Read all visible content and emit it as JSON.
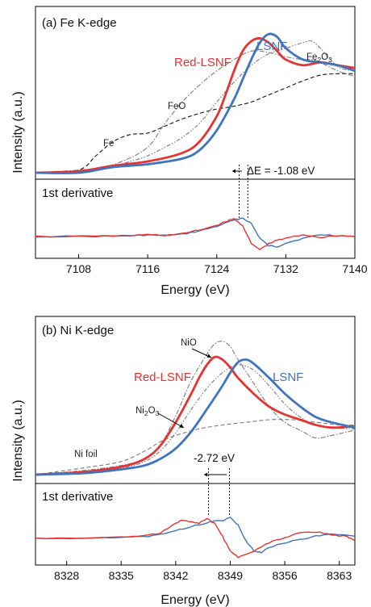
{
  "colors": {
    "red": "#e8322f",
    "blue": "#3f74c0",
    "black": "#111111",
    "gray": "#7a7a7a"
  },
  "chart_data": [
    {
      "type": "line",
      "title": "(a) Fe K-edge",
      "xlabel": "Energy (eV)",
      "ylabel": "Intensity (a.u.)",
      "lower_label": "1st derivative",
      "xlim": [
        7103,
        7140
      ],
      "xticks": [
        7108,
        7116,
        7124,
        7132,
        7140
      ],
      "series_labels": [
        {
          "name": "Red-LSNF",
          "color": "red"
        },
        {
          "name": "LSNF",
          "color": "blue"
        }
      ],
      "reference_labels": [
        "Fe",
        "FeO",
        "Fe2O3"
      ],
      "shift_label": "ΔE = -1.08 eV",
      "series": [
        {
          "name": "Red-LSNF",
          "color": "red",
          "x": [
            7103,
            7108,
            7112,
            7116,
            7120,
            7122,
            7124,
            7125,
            7126,
            7127,
            7128,
            7129,
            7130,
            7131,
            7132,
            7134,
            7136,
            7138,
            7140
          ],
          "y": [
            0.0,
            0.01,
            0.05,
            0.08,
            0.14,
            0.22,
            0.4,
            0.55,
            0.72,
            0.86,
            0.93,
            0.95,
            0.92,
            0.86,
            0.8,
            0.76,
            0.78,
            0.76,
            0.74
          ]
        },
        {
          "name": "LSNF",
          "color": "blue",
          "x": [
            7103,
            7108,
            7112,
            7116,
            7120,
            7122,
            7124,
            7126,
            7127,
            7128,
            7129,
            7130,
            7131,
            7132,
            7134,
            7136,
            7138,
            7140
          ],
          "y": [
            0.0,
            0.0,
            0.04,
            0.06,
            0.1,
            0.16,
            0.3,
            0.52,
            0.66,
            0.8,
            0.92,
            0.98,
            0.96,
            0.88,
            0.8,
            0.78,
            0.76,
            0.72
          ]
        },
        {
          "name": "Fe",
          "color": "black",
          "dash": "dashed",
          "x": [
            7103,
            7108,
            7110,
            7112,
            7114,
            7116,
            7118,
            7120,
            7122,
            7124,
            7126,
            7128,
            7130,
            7132,
            7134,
            7136,
            7138,
            7140
          ],
          "y": [
            0.0,
            0.02,
            0.12,
            0.22,
            0.27,
            0.28,
            0.33,
            0.38,
            0.42,
            0.45,
            0.47,
            0.5,
            0.55,
            0.6,
            0.65,
            0.69,
            0.7,
            0.7
          ]
        },
        {
          "name": "FeO",
          "color": "gray",
          "dash": "dashdot",
          "x": [
            7103,
            7110,
            7113,
            7116,
            7118,
            7120,
            7122,
            7124,
            7126,
            7128,
            7130,
            7132,
            7134,
            7135,
            7136,
            7138,
            7140
          ],
          "y": [
            0.0,
            0.03,
            0.08,
            0.18,
            0.35,
            0.5,
            0.62,
            0.72,
            0.8,
            0.86,
            0.85,
            0.82,
            0.8,
            0.8,
            0.78,
            0.72,
            0.68
          ]
        },
        {
          "name": "Fe2O3",
          "color": "gray",
          "dash": "dashdotdot",
          "x": [
            7103,
            7110,
            7114,
            7116,
            7118,
            7120,
            7122,
            7124,
            7126,
            7128,
            7130,
            7132,
            7134,
            7135,
            7136,
            7138,
            7140
          ],
          "y": [
            0.0,
            0.02,
            0.08,
            0.12,
            0.18,
            0.25,
            0.35,
            0.5,
            0.64,
            0.76,
            0.84,
            0.88,
            0.92,
            0.93,
            0.88,
            0.75,
            0.72
          ]
        }
      ],
      "derivative_series": [
        {
          "name": "Red-LSNF",
          "color": "red",
          "x": [
            7103,
            7110,
            7114,
            7116,
            7118,
            7120,
            7122,
            7124,
            7125,
            7126,
            7127,
            7128,
            7129,
            7130,
            7131,
            7132,
            7134,
            7136,
            7138,
            7140
          ],
          "y": [
            0.0,
            0.01,
            0.05,
            0.1,
            0.06,
            0.15,
            0.35,
            0.6,
            0.8,
            0.95,
            0.6,
            -0.4,
            -0.7,
            -0.4,
            -0.2,
            -0.1,
            0.1,
            -0.05,
            0.05,
            0.0
          ]
        },
        {
          "name": "LSNF",
          "color": "blue",
          "x": [
            7103,
            7110,
            7114,
            7116,
            7118,
            7120,
            7122,
            7124,
            7126,
            7127,
            7128,
            7129,
            7130,
            7131,
            7132,
            7134,
            7136,
            7138,
            7140
          ],
          "y": [
            0.0,
            0.01,
            0.04,
            0.08,
            0.05,
            0.12,
            0.3,
            0.55,
            0.88,
            1.0,
            0.7,
            -0.1,
            -0.5,
            -0.55,
            -0.35,
            -0.1,
            0.1,
            0.05,
            0.0
          ]
        }
      ],
      "shift_markers": [
        7126.6,
        7127.6
      ]
    },
    {
      "type": "line",
      "title": "(b) Ni K-edge",
      "xlabel": "Energy (eV)",
      "ylabel": "Intensity (a.u.)",
      "lower_label": "1st derivative",
      "xlim": [
        8324,
        8365
      ],
      "xticks": [
        8328,
        8335,
        8342,
        8349,
        8356,
        8363
      ],
      "series_labels": [
        {
          "name": "Red-LSNF",
          "color": "red"
        },
        {
          "name": "LSNF",
          "color": "blue"
        }
      ],
      "reference_labels": [
        "NiO",
        "Ni foil"
      ],
      "ni2o3_label": {
        "base": "Ni",
        "sub1": "2",
        "mid": "O",
        "sub2": "3"
      },
      "shift_label": "-2.72 eV",
      "series": [
        {
          "name": "Red-LSNF",
          "color": "red",
          "x": [
            8324,
            8330,
            8335,
            8338,
            8340,
            8342,
            8344,
            8345,
            8346,
            8347,
            8348,
            8349,
            8350,
            8352,
            8354,
            8356,
            8358,
            8360,
            8362,
            8365
          ],
          "y": [
            0.0,
            0.02,
            0.06,
            0.12,
            0.22,
            0.4,
            0.62,
            0.74,
            0.84,
            0.9,
            0.88,
            0.82,
            0.74,
            0.62,
            0.52,
            0.46,
            0.42,
            0.38,
            0.36,
            0.37
          ]
        },
        {
          "name": "LSNF",
          "color": "blue",
          "x": [
            8324,
            8330,
            8335,
            8338,
            8340,
            8342,
            8344,
            8346,
            8348,
            8349,
            8350,
            8351,
            8352,
            8354,
            8356,
            8358,
            8360,
            8362,
            8365
          ],
          "y": [
            0.0,
            0.01,
            0.04,
            0.07,
            0.12,
            0.2,
            0.33,
            0.5,
            0.68,
            0.78,
            0.86,
            0.88,
            0.85,
            0.74,
            0.62,
            0.52,
            0.44,
            0.4,
            0.36
          ]
        },
        {
          "name": "Ni foil",
          "color": "gray",
          "dash": "dashed",
          "x": [
            8324,
            8330,
            8335,
            8338,
            8340,
            8342,
            8345,
            8348,
            8351,
            8354,
            8357,
            8360,
            8363,
            8365
          ],
          "y": [
            0.0,
            0.05,
            0.1,
            0.18,
            0.25,
            0.3,
            0.35,
            0.38,
            0.4,
            0.42,
            0.42,
            0.4,
            0.38,
            0.38
          ]
        },
        {
          "name": "NiO",
          "color": "gray",
          "dash": "dashdot",
          "x": [
            8324,
            8330,
            8335,
            8338,
            8340,
            8342,
            8344,
            8346,
            8347,
            8348,
            8349,
            8350,
            8352,
            8354,
            8356,
            8358,
            8360,
            8362,
            8365
          ],
          "y": [
            0.0,
            0.03,
            0.07,
            0.12,
            0.22,
            0.45,
            0.72,
            0.92,
            1.0,
            1.02,
            0.98,
            0.88,
            0.7,
            0.52,
            0.4,
            0.34,
            0.28,
            0.3,
            0.34
          ]
        },
        {
          "name": "Ni2O3",
          "color": "gray",
          "dash": "dashdotdot",
          "x": [
            8324,
            8330,
            8335,
            8338,
            8340,
            8342,
            8344,
            8346,
            8348,
            8350,
            8352,
            8354,
            8356,
            8358,
            8360,
            8362,
            8365
          ],
          "y": [
            0.0,
            0.02,
            0.05,
            0.1,
            0.18,
            0.32,
            0.5,
            0.66,
            0.78,
            0.84,
            0.8,
            0.68,
            0.54,
            0.44,
            0.38,
            0.36,
            0.35
          ]
        }
      ],
      "derivative_series": [
        {
          "name": "Red-LSNF",
          "color": "red",
          "x": [
            8324,
            8330,
            8335,
            8338,
            8340,
            8342,
            8343,
            8344,
            8345,
            8346,
            8347,
            8348,
            8349,
            8350,
            8352,
            8354,
            8356,
            8358,
            8360,
            8362,
            8364,
            8365
          ],
          "y": [
            0.0,
            0.02,
            0.05,
            0.12,
            0.25,
            0.7,
            0.85,
            0.75,
            0.7,
            0.9,
            0.7,
            0.1,
            -0.6,
            -0.85,
            -0.6,
            -0.2,
            0.05,
            0.25,
            0.3,
            0.15,
            0.1,
            -0.1
          ]
        },
        {
          "name": "LSNF",
          "color": "blue",
          "x": [
            8324,
            8330,
            8335,
            8338,
            8340,
            8342,
            8344,
            8346,
            8347,
            8348,
            8349,
            8350,
            8351,
            8352,
            8353,
            8354,
            8356,
            8358,
            8360,
            8362,
            8365
          ],
          "y": [
            0.0,
            0.01,
            0.03,
            0.08,
            0.18,
            0.35,
            0.55,
            0.7,
            0.8,
            0.82,
            0.95,
            0.6,
            -0.1,
            -0.55,
            -0.65,
            -0.4,
            -0.2,
            -0.05,
            0.1,
            0.2,
            0.1
          ]
        }
      ],
      "shift_markers": [
        8346.2,
        8348.9
      ]
    }
  ]
}
